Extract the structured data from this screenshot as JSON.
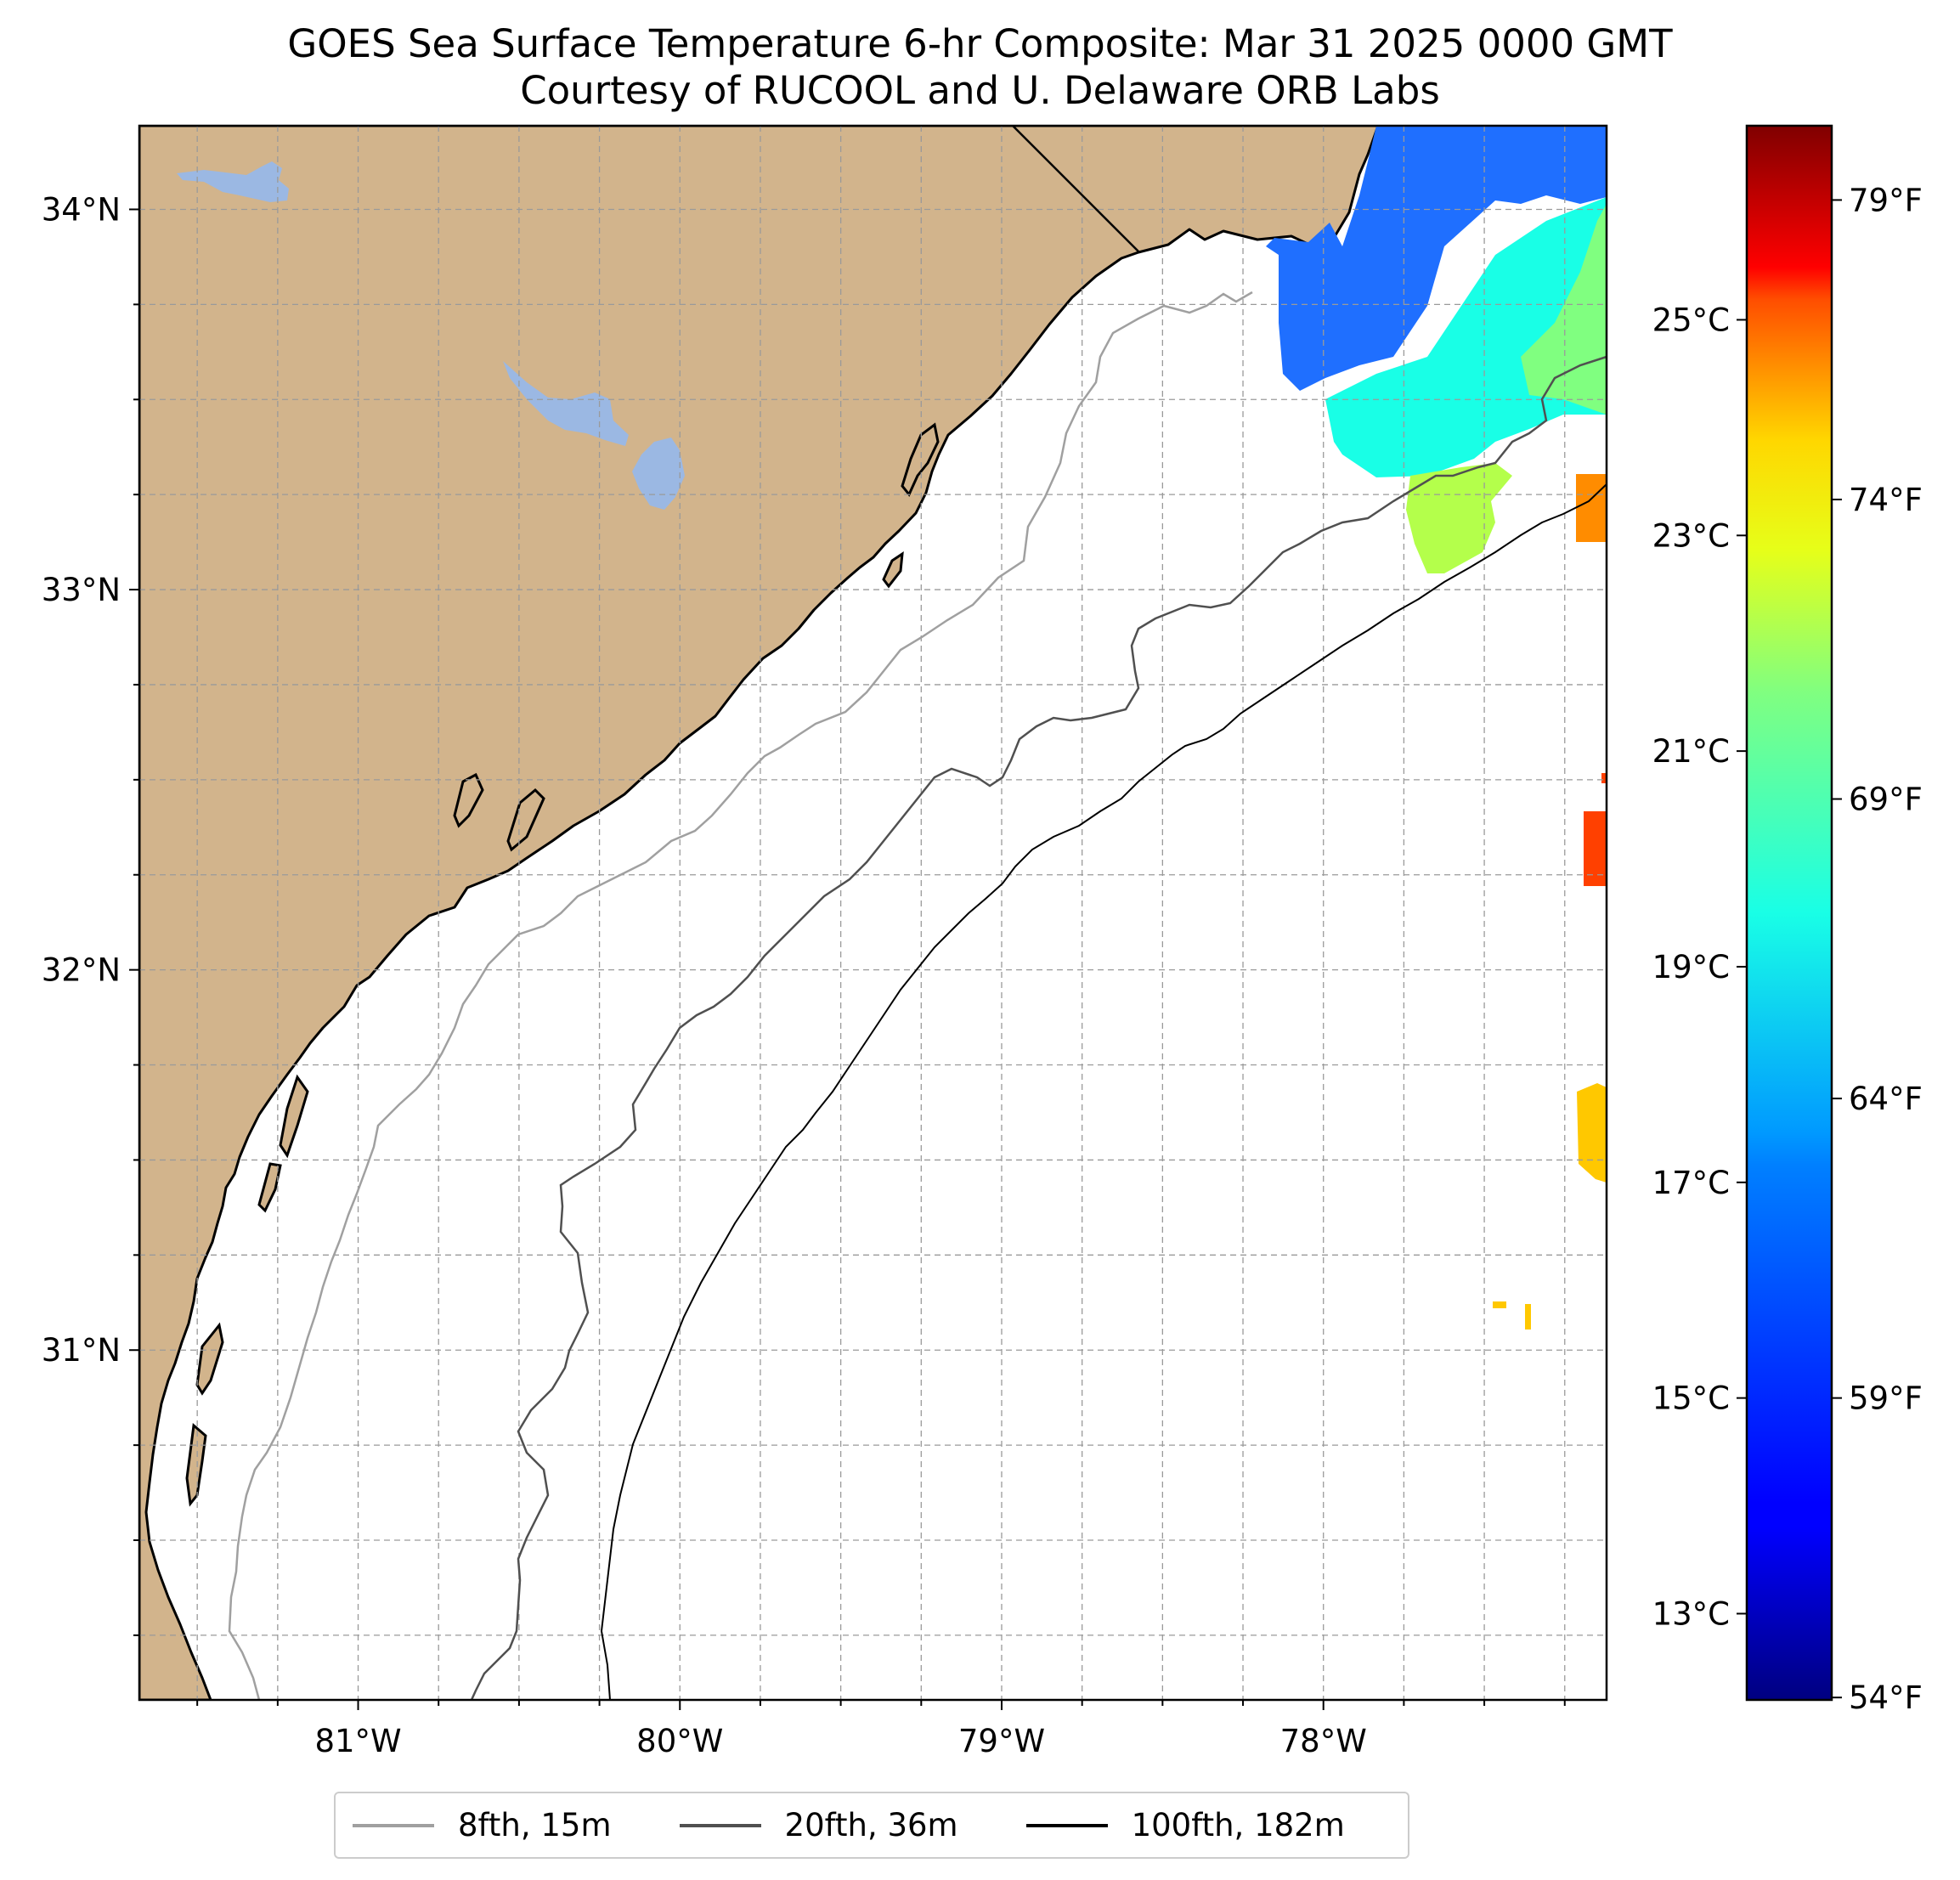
{
  "title": {
    "line1": "GOES Sea Surface Temperature 6-hr Composite: Mar 31 2025 0000 GMT",
    "line2": "Courtesy of RUCOOL and U. Delaware ORB Labs"
  },
  "map": {
    "lon_range": [
      -81.68,
      -77.12
    ],
    "lat_range": [
      30.08,
      34.22
    ],
    "lat_ticks": [
      {
        "value": 34,
        "label": "34°N"
      },
      {
        "value": 33,
        "label": "33°N"
      },
      {
        "value": 32,
        "label": "32°N"
      },
      {
        "value": 31,
        "label": "31°N"
      }
    ],
    "lon_ticks": [
      {
        "value": -81,
        "label": "81°W"
      },
      {
        "value": -80,
        "label": "80°W"
      },
      {
        "value": -79,
        "label": "79°W"
      },
      {
        "value": -78,
        "label": "78°W"
      }
    ],
    "gridlines": "dashed, every 0.25°",
    "colors": {
      "land": "#d2b48c",
      "ocean": "#ffffff",
      "lakes": "#9bb8e3",
      "contour_8fth": "#a0a0a0",
      "contour_20fth": "#505050",
      "contour_100fth": "#000000"
    }
  },
  "colorbar": {
    "colormap": "jet",
    "range_celsius": [
      12.2,
      26.8
    ],
    "celsius_ticks": [
      {
        "value": 13,
        "label": "13°C"
      },
      {
        "value": 15,
        "label": "15°C"
      },
      {
        "value": 17,
        "label": "17°C"
      },
      {
        "value": 19,
        "label": "19°C"
      },
      {
        "value": 21,
        "label": "21°C"
      },
      {
        "value": 23,
        "label": "23°C"
      },
      {
        "value": 25,
        "label": "25°C"
      }
    ],
    "fahrenheit_ticks": [
      {
        "value": 54,
        "label": "54°F"
      },
      {
        "value": 59,
        "label": "59°F"
      },
      {
        "value": 64,
        "label": "64°F"
      },
      {
        "value": 69,
        "label": "69°F"
      },
      {
        "value": 74,
        "label": "74°F"
      },
      {
        "value": 79,
        "label": "79°F"
      }
    ]
  },
  "legend": {
    "entries": [
      {
        "label": "8fth, 15m",
        "color": "#a0a0a0"
      },
      {
        "label": "20fth, 36m",
        "color": "#505050"
      },
      {
        "label": "100fth, 182m",
        "color": "#000000"
      }
    ]
  }
}
